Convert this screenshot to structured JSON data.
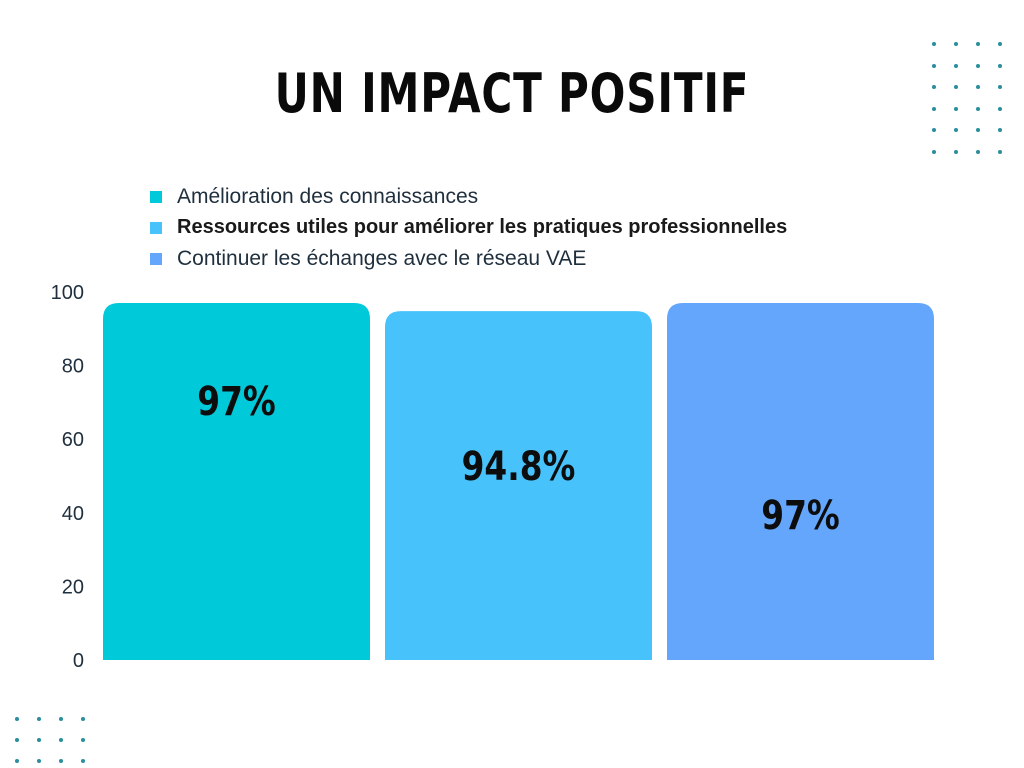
{
  "title": "UN IMPACT POSITIF",
  "chart_data": {
    "type": "bar",
    "categories": [
      "Amélioration des connaissances",
      "Ressources utiles pour améliorer les pratiques professionnelles",
      "Continuer les échanges avec le réseau VAE"
    ],
    "values": [
      97,
      94.8,
      97
    ],
    "data_labels": [
      "97%",
      "94.8%",
      "97%"
    ],
    "colors": [
      "#00c9d9",
      "#47c2fb",
      "#64a6fb"
    ],
    "yticks": [
      "0",
      "20",
      "40",
      "60",
      "80",
      "100"
    ],
    "ylim": [
      0,
      100
    ],
    "legend_position": "top",
    "grid": false
  }
}
